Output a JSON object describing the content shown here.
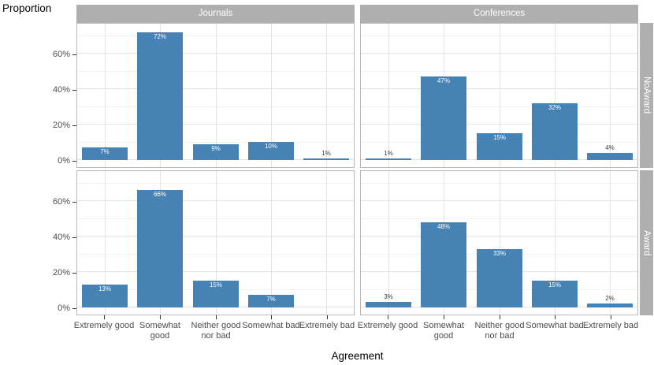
{
  "colors": {
    "bar_fill": "#4682B4",
    "strip_background": "#afafaf",
    "strip_text": "#ffffff",
    "axis_text": "#4d4d4d",
    "axis_title_text": "#000000",
    "grid_major": "#e3e3e3",
    "grid_minor": "#f1f1f1",
    "panel_border": "#b8b8b8",
    "bar_label_inside": "#ffffff",
    "bar_label_outside": "#3c3c3c"
  },
  "axes": {
    "y_title": "Proportion",
    "x_title": "Agreement",
    "y_tick_values": [
      0,
      20,
      40,
      60
    ],
    "y_tick_labels": [
      "0%",
      "20%",
      "40%",
      "60%"
    ],
    "y_minor_values": [
      10,
      30,
      50,
      70
    ]
  },
  "chart_data": {
    "type": "bar",
    "title": "",
    "xlabel": "Agreement",
    "ylabel": "Proportion",
    "unit": "percent",
    "ylim": [
      0,
      77.5
    ],
    "grid": "on",
    "facet_columns": [
      "Journals",
      "Conferences"
    ],
    "facet_rows": [
      "NoAward",
      "Award"
    ],
    "categories": [
      "Extremely good",
      "Somewhat good",
      "Neither good nor bad",
      "Somewhat bad",
      "Extremely bad"
    ],
    "panels": [
      {
        "column": "Journals",
        "row": "NoAward",
        "values": [
          7,
          72,
          9,
          10,
          1
        ],
        "labels": [
          "7%",
          "72%",
          "9%",
          "10%",
          "1%"
        ]
      },
      {
        "column": "Conferences",
        "row": "NoAward",
        "values": [
          1,
          47,
          15,
          32,
          4
        ],
        "labels": [
          "1%",
          "47%",
          "15%",
          "32%",
          "4%"
        ]
      },
      {
        "column": "Journals",
        "row": "Award",
        "values": [
          13,
          66,
          15,
          7,
          0
        ],
        "labels": [
          "13%",
          "66%",
          "15%",
          "7%",
          ""
        ]
      },
      {
        "column": "Conferences",
        "row": "Award",
        "values": [
          3,
          48,
          33,
          15,
          2
        ],
        "labels": [
          "3%",
          "48%",
          "33%",
          "15%",
          "2%"
        ]
      }
    ]
  }
}
